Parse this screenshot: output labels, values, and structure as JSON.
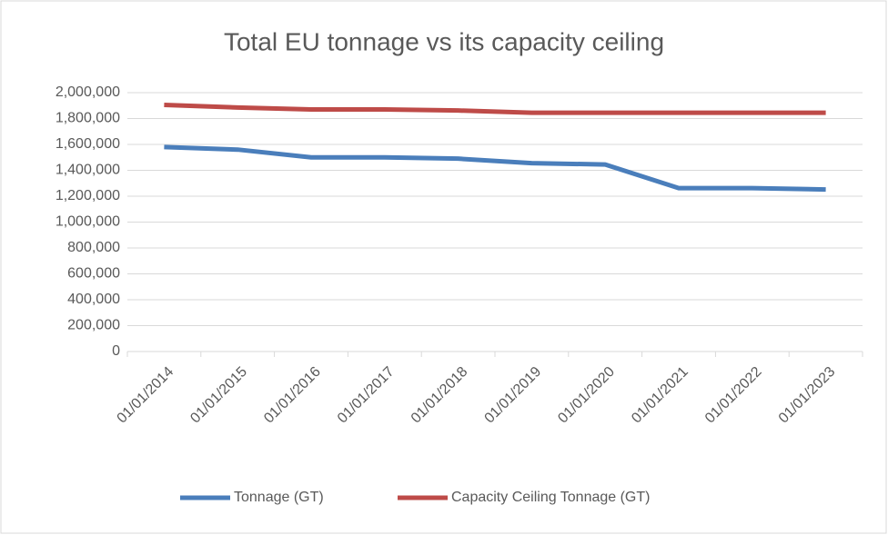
{
  "chart_data": {
    "type": "line",
    "title": "Total EU tonnage vs its capacity ceiling",
    "categories": [
      "01/01/2014",
      "01/01/2015",
      "01/01/2016",
      "01/01/2017",
      "01/01/2018",
      "01/01/2019",
      "01/01/2020",
      "01/01/2021",
      "01/01/2022",
      "01/01/2023"
    ],
    "series": [
      {
        "name": "Tonnage (GT)",
        "color": "#4a7ebb",
        "values": [
          1580000,
          1560000,
          1500000,
          1500000,
          1490000,
          1455000,
          1445000,
          1262000,
          1262000,
          1252000
        ]
      },
      {
        "name": "Capacity Ceiling Tonnage (GT)",
        "color": "#be4b48",
        "values": [
          1905000,
          1885000,
          1870000,
          1870000,
          1862000,
          1845000,
          1845000,
          1845000,
          1845000,
          1845000
        ]
      }
    ],
    "ylim": [
      0,
      2000000
    ],
    "yticks": [
      0,
      {
        "value": 200000,
        "label": "200,000"
      },
      {
        "value": 400000,
        "label": "400,000"
      },
      {
        "value": 600000,
        "label": "600,000"
      },
      {
        "value": 800000,
        "label": "800,000"
      },
      {
        "value": 1000000,
        "label": "1,000,000"
      },
      {
        "value": 1200000,
        "label": "1,200,000"
      },
      {
        "value": 1400000,
        "label": "1,400,000"
      },
      {
        "value": 1600000,
        "label": "1,600,000"
      },
      {
        "value": 1800000,
        "label": "1,800,000"
      },
      {
        "value": 2000000,
        "label": "2,000,000"
      }
    ],
    "grid": true,
    "legend": "bottom"
  }
}
